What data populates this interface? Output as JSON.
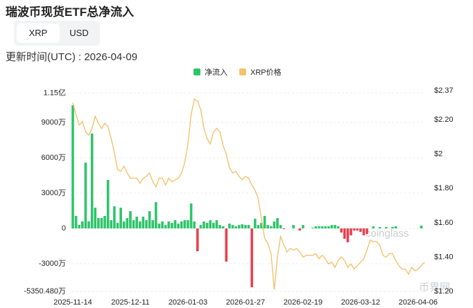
{
  "header": {
    "title": "瑞波币现货ETF总净流入",
    "tabs": [
      "XRP",
      "USD"
    ],
    "updated": "更新时间(UTC) : 2026-04-09"
  },
  "watermarks": [
    "coinglass",
    "币界网"
  ],
  "chart_data": {
    "type": "bar",
    "grid": true,
    "negative_color": "#e8414f",
    "categories": [
      "2025-11-14",
      null,
      null,
      null,
      null,
      null,
      null,
      null,
      null,
      null,
      null,
      null,
      null,
      null,
      null,
      null,
      null,
      null,
      "2025-12-11",
      null,
      null,
      null,
      null,
      null,
      null,
      null,
      null,
      null,
      null,
      null,
      null,
      null,
      null,
      null,
      null,
      null,
      "2026-01-03",
      null,
      null,
      null,
      null,
      null,
      null,
      null,
      null,
      null,
      null,
      null,
      null,
      null,
      null,
      null,
      null,
      null,
      "2026-01-27",
      null,
      null,
      null,
      null,
      null,
      null,
      null,
      null,
      null,
      null,
      null,
      null,
      null,
      null,
      null,
      null,
      null,
      "2026-02-19",
      null,
      null,
      null,
      null,
      null,
      null,
      null,
      null,
      null,
      null,
      null,
      null,
      null,
      null,
      null,
      null,
      null,
      "2026-03-12",
      null,
      null,
      null,
      null,
      null,
      null,
      null,
      null,
      null,
      null,
      null,
      null,
      null,
      null,
      null,
      null,
      null,
      "2026-04-06",
      null,
      null
    ],
    "series": [
      {
        "name": "净流入",
        "type": "bar",
        "color": "#2fc46a",
        "values": [
          10470,
          1060,
          300,
          600,
          5590,
          600,
          8060,
          1760,
          880,
          880,
          1060,
          4120,
          700,
          1880,
          470,
          1760,
          590,
          880,
          1470,
          700,
          1000,
          590,
          1000,
          700,
          1470,
          700,
          2230,
          410,
          590,
          290,
          590,
          470,
          700,
          410,
          590,
          700,
          700,
          2120,
          590,
          -1940,
          290,
          590,
          470,
          700,
          470,
          700,
          290,
          180,
          -2820,
          410,
          290,
          180,
          290,
          350,
          290,
          290,
          -5000,
          820,
          290,
          470,
          1060,
          290,
          180,
          590,
          880,
          290,
          -60,
          0,
          0,
          290,
          0,
          -180,
          290,
          0,
          0,
          60,
          180,
          180,
          180,
          180,
          180,
          290,
          290,
          180,
          -350,
          -880,
          -1180,
          -590,
          -180,
          -180,
          -290,
          -590,
          -470,
          0,
          180,
          0,
          120,
          0,
          120,
          0,
          120,
          180,
          0,
          0,
          0,
          0,
          0,
          0,
          0,
          240,
          0
        ]
      },
      {
        "name": "XRP价格",
        "type": "line",
        "axis": "y2",
        "color": "#f3c26b",
        "values": [
          2.3,
          2.23,
          2.17,
          2.19,
          2.13,
          2.11,
          2.15,
          2.22,
          2.18,
          2.15,
          2.18,
          2.16,
          2.09,
          2.01,
          1.91,
          1.9,
          1.93,
          1.89,
          1.86,
          1.86,
          1.86,
          1.83,
          1.86,
          1.87,
          1.89,
          1.84,
          1.81,
          1.86,
          1.86,
          1.82,
          1.86,
          1.84,
          1.85,
          1.86,
          1.89,
          1.95,
          2.06,
          2.23,
          2.32,
          2.31,
          2.26,
          2.15,
          2.09,
          2.06,
          2.13,
          2.15,
          2.13,
          2.05,
          2.0,
          1.92,
          1.89,
          1.9,
          1.87,
          1.85,
          1.87,
          1.86,
          1.82,
          1.79,
          1.74,
          1.62,
          1.51,
          1.48,
          1.42,
          1.21,
          1.4,
          1.52,
          1.47,
          1.43,
          1.45,
          1.44,
          1.45,
          1.43,
          1.4,
          1.41,
          1.41,
          1.41,
          1.42,
          1.39,
          1.41,
          1.39,
          1.36,
          1.37,
          1.34,
          1.38,
          1.4,
          1.38,
          1.34,
          1.36,
          1.33,
          1.35,
          1.37,
          1.39,
          1.44,
          1.5,
          1.49,
          1.49,
          1.47,
          1.41,
          1.4,
          1.42,
          1.42,
          1.38,
          1.35,
          1.33,
          1.33,
          1.3,
          1.34,
          1.32,
          1.33,
          1.35,
          1.37
        ]
      }
    ],
    "ylim": [
      -5350.48,
      11500
    ],
    "yticks": [
      {
        "value": 11500,
        "label": "1.15亿"
      },
      {
        "value": 9000,
        "label": "9000万"
      },
      {
        "value": 6000,
        "label": "6000万"
      },
      {
        "value": 3000,
        "label": "3000万"
      },
      0,
      {
        "value": -3000,
        "label": "-3000万"
      },
      {
        "value": -5350.48,
        "label": "-5350.480万"
      }
    ],
    "y2lim": [
      1.2,
      2.37
    ],
    "y2ticks": [
      {
        "value": 2.37,
        "label": "$2.37"
      },
      {
        "value": 2.2,
        "label": "$2.20"
      },
      {
        "value": 2,
        "label": "$2"
      },
      {
        "value": 1.8,
        "label": "$1.80"
      },
      {
        "value": 1.6,
        "label": "$1.60"
      },
      {
        "value": 1.4,
        "label": "$1.40"
      },
      {
        "value": 1.2,
        "label": "$1.20"
      }
    ]
  }
}
